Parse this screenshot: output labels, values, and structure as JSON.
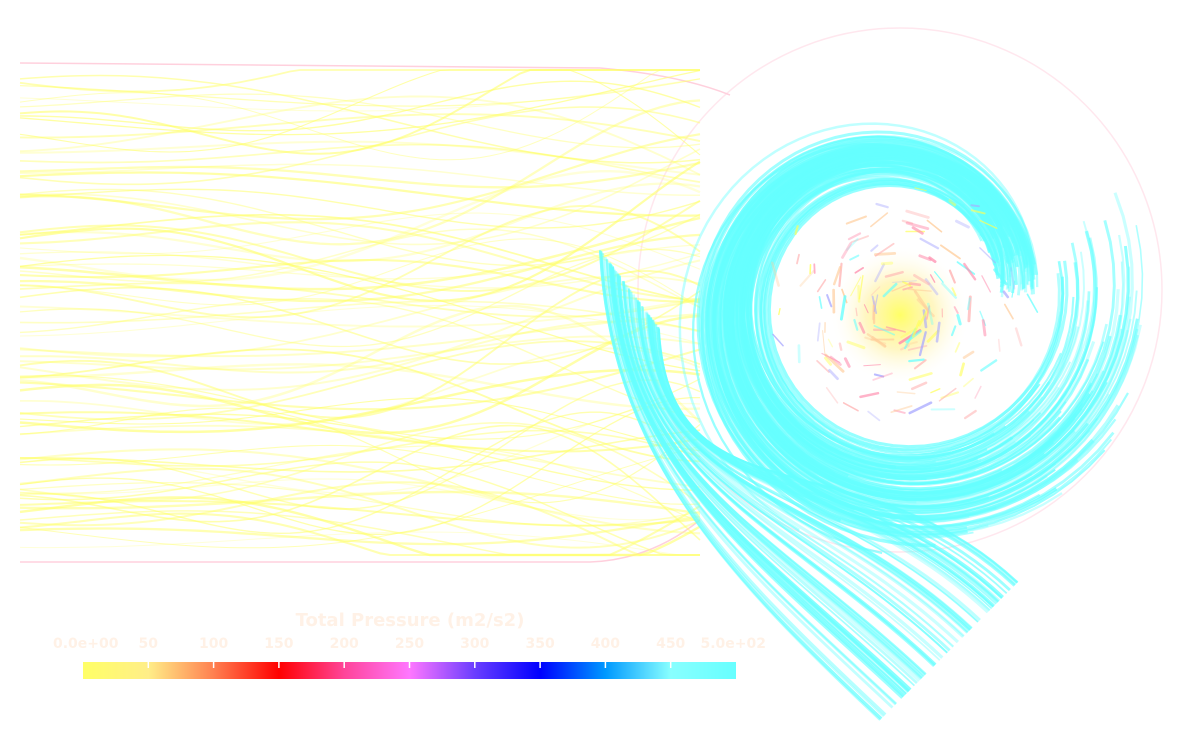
{
  "colorbar": {
    "title": "Total Pressure (m2/s2)",
    "ticks": [
      "0.0e+00",
      "50",
      "100",
      "150",
      "200",
      "250",
      "300",
      "350",
      "400",
      "450",
      "5.0e+02"
    ],
    "range": [
      0,
      500
    ],
    "stops": [
      {
        "value": 0,
        "color": "#ffff66"
      },
      {
        "value": 50,
        "color": "#ffee88"
      },
      {
        "value": 100,
        "color": "#ff8050"
      },
      {
        "value": 150,
        "color": "#ff0000"
      },
      {
        "value": 200,
        "color": "#ff4499"
      },
      {
        "value": 250,
        "color": "#ff77ff"
      },
      {
        "value": 300,
        "color": "#6a3dff"
      },
      {
        "value": 350,
        "color": "#0000ff"
      },
      {
        "value": 400,
        "color": "#0099ff"
      },
      {
        "value": 450,
        "color": "#88ffff"
      },
      {
        "value": 500,
        "color": "#66ffff"
      }
    ],
    "text_color": "#fff1e6"
  },
  "colors": {
    "inlet_streamlines": "#ffff66",
    "volute_streamlines": "#66ffff",
    "impeller_mixed": "#ffb0b0",
    "impeller_core": "#ffff55",
    "boundary_outline": "#ffd0dd"
  }
}
